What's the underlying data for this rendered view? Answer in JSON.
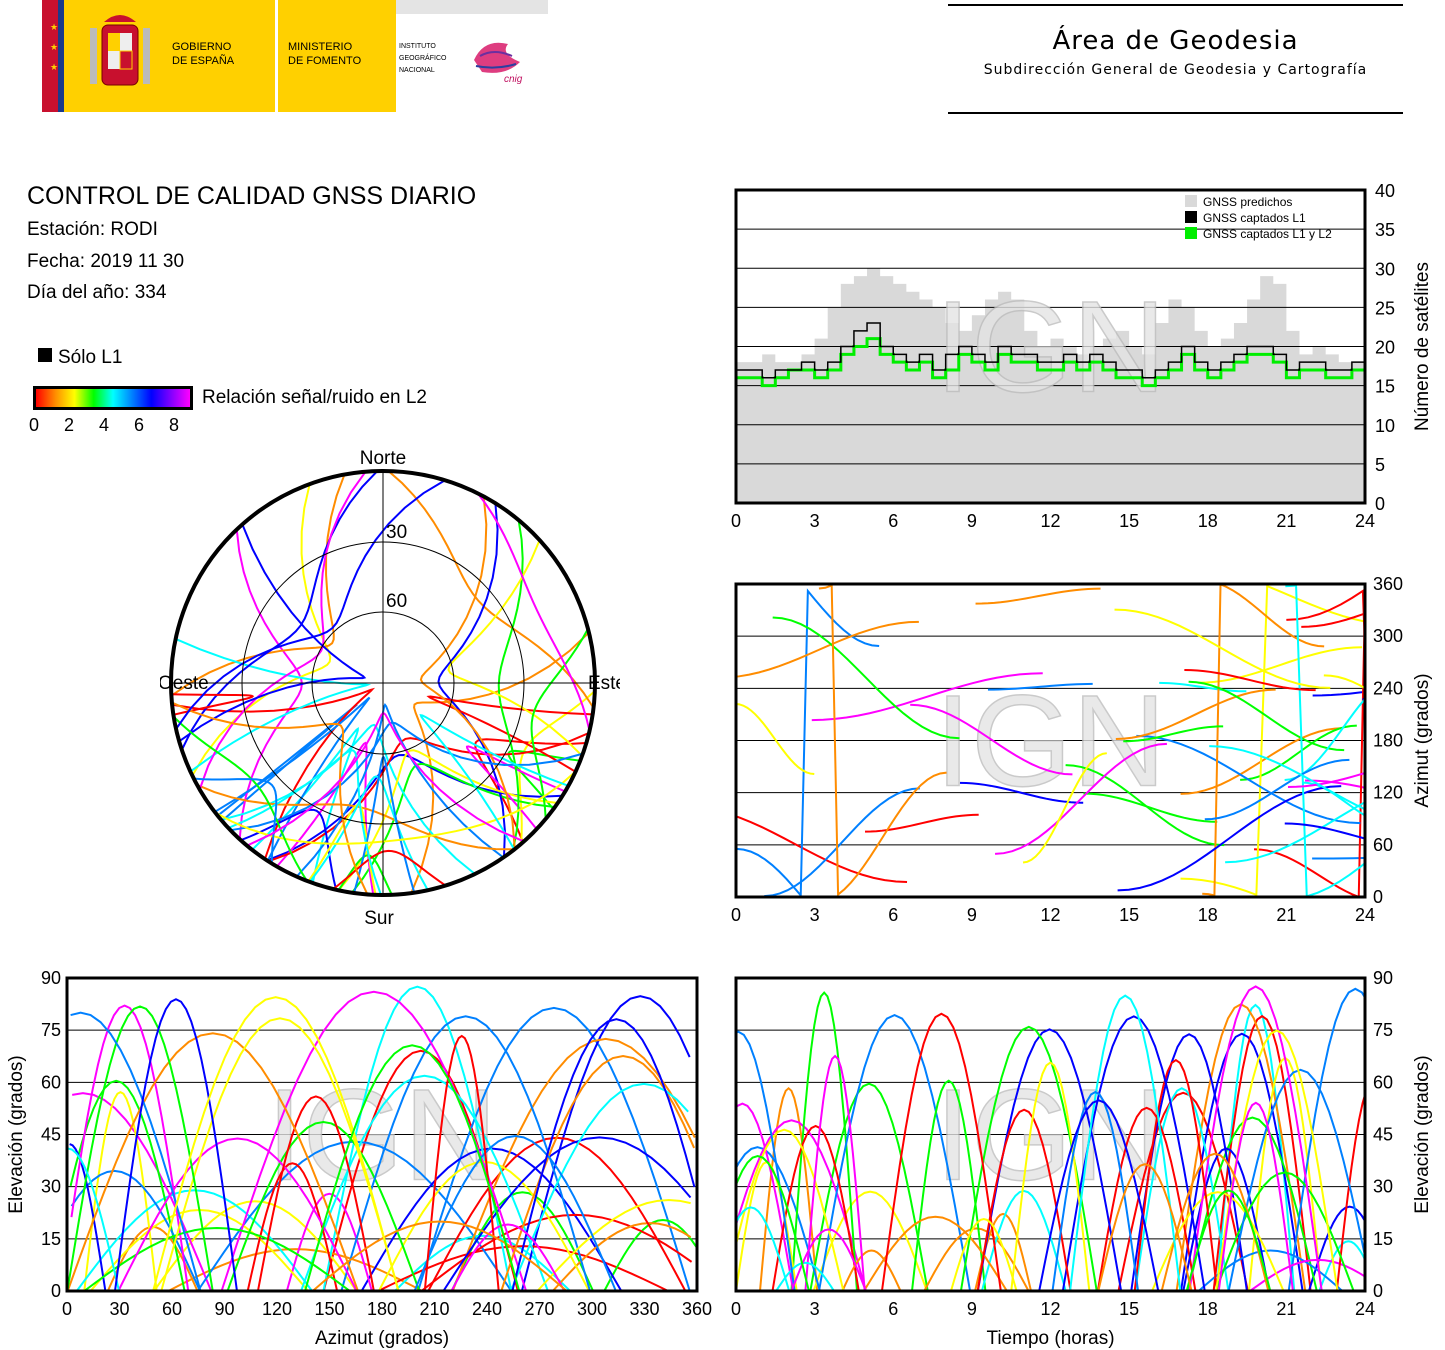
{
  "header": {
    "gov_line1": "GOBIERNO",
    "gov_line2": "DE ESPAÑA",
    "min_line1": "MINISTERIO",
    "min_line2": "DE FOMENTO",
    "inst_line1": "INSTITUTO",
    "inst_line2": "GEOGRÁFICO",
    "inst_line3": "NACIONAL",
    "cnig": "cnig",
    "area_title": "Área de Geodesia",
    "area_subtitle": "Subdirección General de Geodesia y Cartografía"
  },
  "report": {
    "title": "CONTROL DE CALIDAD GNSS DIARIO",
    "station": "Estación: RODI",
    "date": "Fecha: 2019 11 30",
    "doy": "Día del año: 334",
    "legend_l1": "Sólo L1",
    "legend_snr": "Relación señal/ruido en L2",
    "snr_ticks": [
      "0",
      "2",
      "4",
      "6",
      "8"
    ]
  },
  "watermark": "IGN",
  "colors": {
    "predicted": "#d9d9d9",
    "l1": "#000000",
    "l1l2": "#00ee00",
    "snr_scale": [
      "#ff0000",
      "#ff8c00",
      "#ffff00",
      "#00ff00",
      "#00ffff",
      "#0080ff",
      "#0000ff",
      "#ff00ff"
    ]
  },
  "chart_data": [
    {
      "type": "area",
      "id": "satellites",
      "ylabel": "Número de satélites",
      "xlim": [
        0,
        24
      ],
      "ylim": [
        0,
        40
      ],
      "xticks": [
        "0",
        "3",
        "6",
        "9",
        "12",
        "15",
        "18",
        "21",
        "24"
      ],
      "yticks": [
        "0",
        "5",
        "10",
        "15",
        "20",
        "25",
        "30",
        "35",
        "40"
      ],
      "grid": true,
      "legend": "top-right",
      "series": [
        {
          "name": "GNSS predichos",
          "x": [
            0,
            0.5,
            1,
            1.5,
            2,
            2.5,
            3,
            3.5,
            4,
            4.5,
            5,
            5.5,
            6,
            6.5,
            7,
            7.5,
            8,
            8.5,
            9,
            9.5,
            10,
            10.5,
            11,
            11.5,
            12,
            12.5,
            13,
            13.5,
            14,
            14.5,
            15,
            15.5,
            16,
            16.5,
            17,
            17.5,
            18,
            18.5,
            19,
            19.5,
            20,
            20.5,
            21,
            21.5,
            22,
            22.5,
            23,
            23.5,
            24
          ],
          "values": [
            18,
            18,
            19,
            18,
            18,
            19,
            21,
            25,
            28,
            29,
            30,
            29,
            28,
            27,
            26,
            25,
            23,
            22,
            24,
            26,
            27,
            26,
            22,
            20,
            21,
            20,
            19,
            20,
            21,
            22,
            20,
            19,
            23,
            26,
            25,
            22,
            20,
            21,
            23,
            26,
            29,
            28,
            22,
            19,
            20,
            19,
            18,
            18,
            18
          ]
        },
        {
          "name": "GNSS captados L1",
          "x": [
            0,
            0.5,
            1,
            1.5,
            2,
            2.5,
            3,
            3.5,
            4,
            4.5,
            5,
            5.5,
            6,
            6.5,
            7,
            7.5,
            8,
            8.5,
            9,
            9.5,
            10,
            10.5,
            11,
            11.5,
            12,
            12.5,
            13,
            13.5,
            14,
            14.5,
            15,
            15.5,
            16,
            16.5,
            17,
            17.5,
            18,
            18.5,
            19,
            19.5,
            20,
            20.5,
            21,
            21.5,
            22,
            22.5,
            23,
            23.5,
            24
          ],
          "values": [
            17,
            17,
            16,
            17,
            17,
            18,
            17,
            18,
            20,
            22,
            23,
            20,
            19,
            18,
            19,
            17,
            19,
            20,
            19,
            18,
            20,
            19,
            19,
            18,
            18,
            19,
            18,
            19,
            18,
            17,
            17,
            16,
            17,
            18,
            20,
            18,
            17,
            18,
            19,
            20,
            20,
            19,
            17,
            18,
            18,
            17,
            17,
            18,
            17
          ]
        },
        {
          "name": "GNSS captados L1 y L2",
          "x": [
            0,
            0.5,
            1,
            1.5,
            2,
            2.5,
            3,
            3.5,
            4,
            4.5,
            5,
            5.5,
            6,
            6.5,
            7,
            7.5,
            8,
            8.5,
            9,
            9.5,
            10,
            10.5,
            11,
            11.5,
            12,
            12.5,
            13,
            13.5,
            14,
            14.5,
            15,
            15.5,
            16,
            16.5,
            17,
            17.5,
            18,
            18.5,
            19,
            19.5,
            20,
            20.5,
            21,
            21.5,
            22,
            22.5,
            23,
            23.5,
            24
          ],
          "values": [
            16,
            16,
            15,
            16,
            17,
            17,
            16,
            17,
            19,
            20,
            21,
            19,
            18,
            17,
            18,
            16,
            17,
            19,
            18,
            17,
            19,
            18,
            18,
            17,
            17,
            18,
            17,
            18,
            17,
            16,
            16,
            15,
            16,
            17,
            19,
            17,
            16,
            17,
            18,
            19,
            19,
            18,
            16,
            17,
            17,
            16,
            16,
            17,
            16
          ]
        }
      ]
    },
    {
      "type": "scatter",
      "id": "skyplot",
      "labels": {
        "north": "Norte",
        "south": "Sur",
        "east": "Este",
        "west": "Oeste"
      },
      "rings": [
        "30",
        "60"
      ]
    },
    {
      "type": "scatter",
      "id": "azimuth-time",
      "ylabel": "Azimut (grados)",
      "xlim": [
        0,
        24
      ],
      "ylim": [
        0,
        360
      ],
      "xticks": [
        "0",
        "3",
        "6",
        "9",
        "12",
        "15",
        "18",
        "21",
        "24"
      ],
      "yticks": [
        "0",
        "60",
        "120",
        "180",
        "240",
        "300",
        "360"
      ]
    },
    {
      "type": "scatter",
      "id": "elevation-azimuth",
      "xlabel": "Azimut (grados)",
      "ylabel": "Elevación (grados)",
      "xlim": [
        0,
        360
      ],
      "ylim": [
        0,
        90
      ],
      "xticks": [
        "0",
        "30",
        "60",
        "90",
        "120",
        "150",
        "180",
        "210",
        "240",
        "270",
        "300",
        "330",
        "360"
      ],
      "yticks": [
        "0",
        "15",
        "30",
        "45",
        "60",
        "75",
        "90"
      ]
    },
    {
      "type": "scatter",
      "id": "elevation-time",
      "xlabel": "Tiempo (horas)",
      "ylabel": "Elevación (grados)",
      "xlim": [
        0,
        24
      ],
      "ylim": [
        0,
        90
      ],
      "xticks": [
        "0",
        "3",
        "6",
        "9",
        "12",
        "15",
        "18",
        "21",
        "24"
      ],
      "yticks": [
        "0",
        "15",
        "30",
        "45",
        "60",
        "75",
        "90"
      ]
    }
  ]
}
